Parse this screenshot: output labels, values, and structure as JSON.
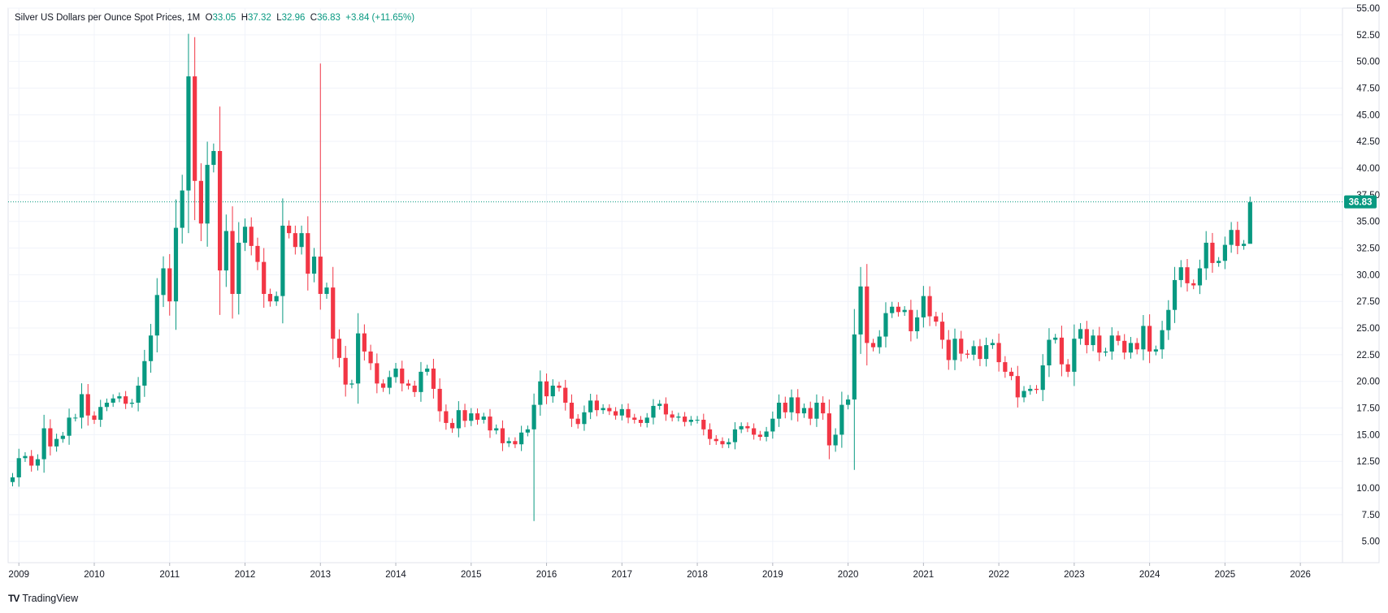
{
  "legend": {
    "title": "Silver US Dollars per Ounce Spot Prices",
    "interval": "1M",
    "o_label": "O",
    "o": "33.05",
    "h_label": "H",
    "h": "37.32",
    "l_label": "L",
    "l": "32.96",
    "c_label": "C",
    "c": "36.83",
    "change": "+3.84 (+11.65%)"
  },
  "price_tag": "36.83",
  "brand": "TradingView",
  "colors": {
    "up": "#089981",
    "down": "#f23645",
    "bg": "#ffffff",
    "grid": "#f0f3fa",
    "text": "#131722"
  },
  "chart_data": {
    "type": "candlestick",
    "interval": "monthly",
    "y_ticks": [
      "5.00",
      "7.50",
      "10.00",
      "12.50",
      "15.00",
      "17.50",
      "20.00",
      "22.50",
      "25.00",
      "27.50",
      "30.00",
      "32.50",
      "35.00",
      "37.50",
      "40.00",
      "42.50",
      "45.00",
      "47.50",
      "50.00",
      "52.50",
      "55.00"
    ],
    "ylim": [
      3.0,
      55.0
    ],
    "x_ticks": [
      "2009",
      "2010",
      "2011",
      "2012",
      "2013",
      "2014",
      "2015",
      "2016",
      "2017",
      "2018",
      "2019",
      "2020",
      "2021",
      "2022",
      "2023",
      "2024",
      "2025",
      "2026"
    ],
    "start": "2008-12",
    "last_price": 36.83,
    "closes": [
      11.0,
      12.8,
      13.0,
      12.1,
      12.7,
      15.6,
      13.9,
      14.6,
      14.9,
      16.6,
      16.6,
      18.8,
      16.8,
      16.4,
      17.6,
      18.0,
      18.4,
      18.6,
      17.9,
      18.0,
      19.6,
      21.9,
      24.3,
      28.1,
      30.6,
      27.5,
      34.4,
      37.9,
      48.6,
      38.8,
      34.8,
      40.3,
      41.6,
      30.4,
      34.1,
      28.2,
      33.0,
      34.5,
      32.7,
      31.2,
      28.2,
      27.5,
      28.0,
      34.6,
      33.9,
      32.6,
      33.9,
      30.1,
      31.7,
      28.2,
      28.8,
      24.0,
      22.2,
      19.7,
      19.8,
      24.5,
      22.8,
      21.7,
      19.8,
      19.4,
      20.4,
      21.2,
      19.8,
      19.6,
      19.0,
      20.9,
      21.2,
      19.3,
      17.2,
      16.1,
      15.6,
      17.3,
      16.3,
      17.0,
      16.4,
      16.7,
      15.4,
      15.6,
      14.2,
      14.4,
      14.1,
      15.2,
      15.5,
      17.8,
      20.0,
      18.6,
      19.6,
      19.4,
      18.0,
      16.5,
      16.0,
      17.1,
      18.2,
      17.3,
      17.5,
      17.2,
      16.8,
      17.4,
      16.6,
      16.4,
      16.1,
      16.6,
      17.7,
      17.9,
      16.9,
      16.6,
      16.7,
      16.2,
      16.4,
      16.4,
      15.5,
      14.6,
      14.4,
      14.1,
      14.3,
      15.5,
      15.8,
      15.6,
      15.0,
      14.8,
      15.3,
      16.5,
      18.0,
      17.1,
      18.5,
      17.0,
      17.5,
      16.5,
      18.0,
      17.0,
      14.0,
      15.0,
      17.8,
      18.3,
      24.4,
      28.9,
      23.6,
      23.2,
      24.2,
      26.4,
      27.0,
      26.5,
      26.7,
      24.7,
      26.0,
      28.0,
      26.1,
      25.6,
      23.9,
      22.0,
      24.0,
      22.6,
      22.5,
      23.3,
      22.1,
      23.4,
      23.6,
      21.8,
      20.9,
      20.5,
      18.5,
      19.1,
      19.3,
      19.2,
      21.5,
      23.9,
      24.1,
      21.6,
      20.9,
      24.0,
      24.9,
      23.4,
      24.3,
      22.7,
      22.8,
      24.3,
      23.8,
      22.7,
      23.6,
      23.0,
      25.2,
      22.8,
      23.0,
      24.8,
      26.7,
      29.5,
      30.7,
      29.2,
      29.0,
      30.6,
      33.0,
      31.1,
      31.3,
      32.8,
      34.2,
      32.7,
      32.9,
      36.8
    ]
  }
}
